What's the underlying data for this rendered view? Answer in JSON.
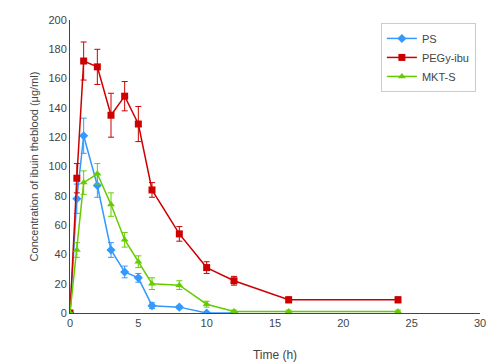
{
  "chart_data": {
    "type": "line",
    "xlabel": "Time (h)",
    "ylabel": "Concentration of ibuin theblood (μg/ml)",
    "series": [
      {
        "name": "PS",
        "color": "#3399FF",
        "marker": "diamond",
        "x": [
          0,
          0.5,
          1,
          2,
          3,
          4,
          5,
          6,
          8,
          10,
          12
        ],
        "values": [
          0,
          78,
          121,
          87,
          43,
          28,
          24,
          5,
          4,
          0,
          0
        ],
        "yerr": [
          0,
          10,
          12,
          8,
          5,
          4,
          3,
          2,
          1,
          0,
          0
        ]
      },
      {
        "name": "PEGy-ibu",
        "color": "#CC0000",
        "marker": "square",
        "x": [
          0,
          0.5,
          1,
          2,
          3,
          4,
          5,
          6,
          8,
          10,
          12,
          16,
          24
        ],
        "values": [
          0,
          92,
          172,
          168,
          135,
          148,
          129,
          84,
          54,
          31,
          22,
          9,
          9
        ],
        "yerr": [
          0,
          10,
          13,
          12,
          15,
          10,
          12,
          5,
          5,
          4,
          3,
          2,
          2
        ]
      },
      {
        "name": "MKT-S",
        "color": "#66CC00",
        "marker": "triangle-up",
        "x": [
          0,
          0.5,
          1,
          2,
          3,
          4,
          5,
          6,
          8,
          10,
          12,
          16,
          24
        ],
        "values": [
          0,
          43,
          89,
          95,
          74,
          50,
          35,
          20,
          19,
          6,
          1,
          1,
          1
        ],
        "yerr": [
          0,
          5,
          8,
          7,
          8,
          5,
          4,
          4,
          3,
          2,
          1,
          1,
          1
        ]
      }
    ],
    "xlim": [
      0,
      30
    ],
    "ylim": [
      0,
      200
    ],
    "xticks": [
      0,
      5,
      10,
      15,
      20,
      25,
      30
    ],
    "yticks": [
      0,
      20,
      40,
      60,
      80,
      100,
      120,
      140,
      160,
      180,
      200
    ],
    "legend": "upper right",
    "grid": false
  }
}
